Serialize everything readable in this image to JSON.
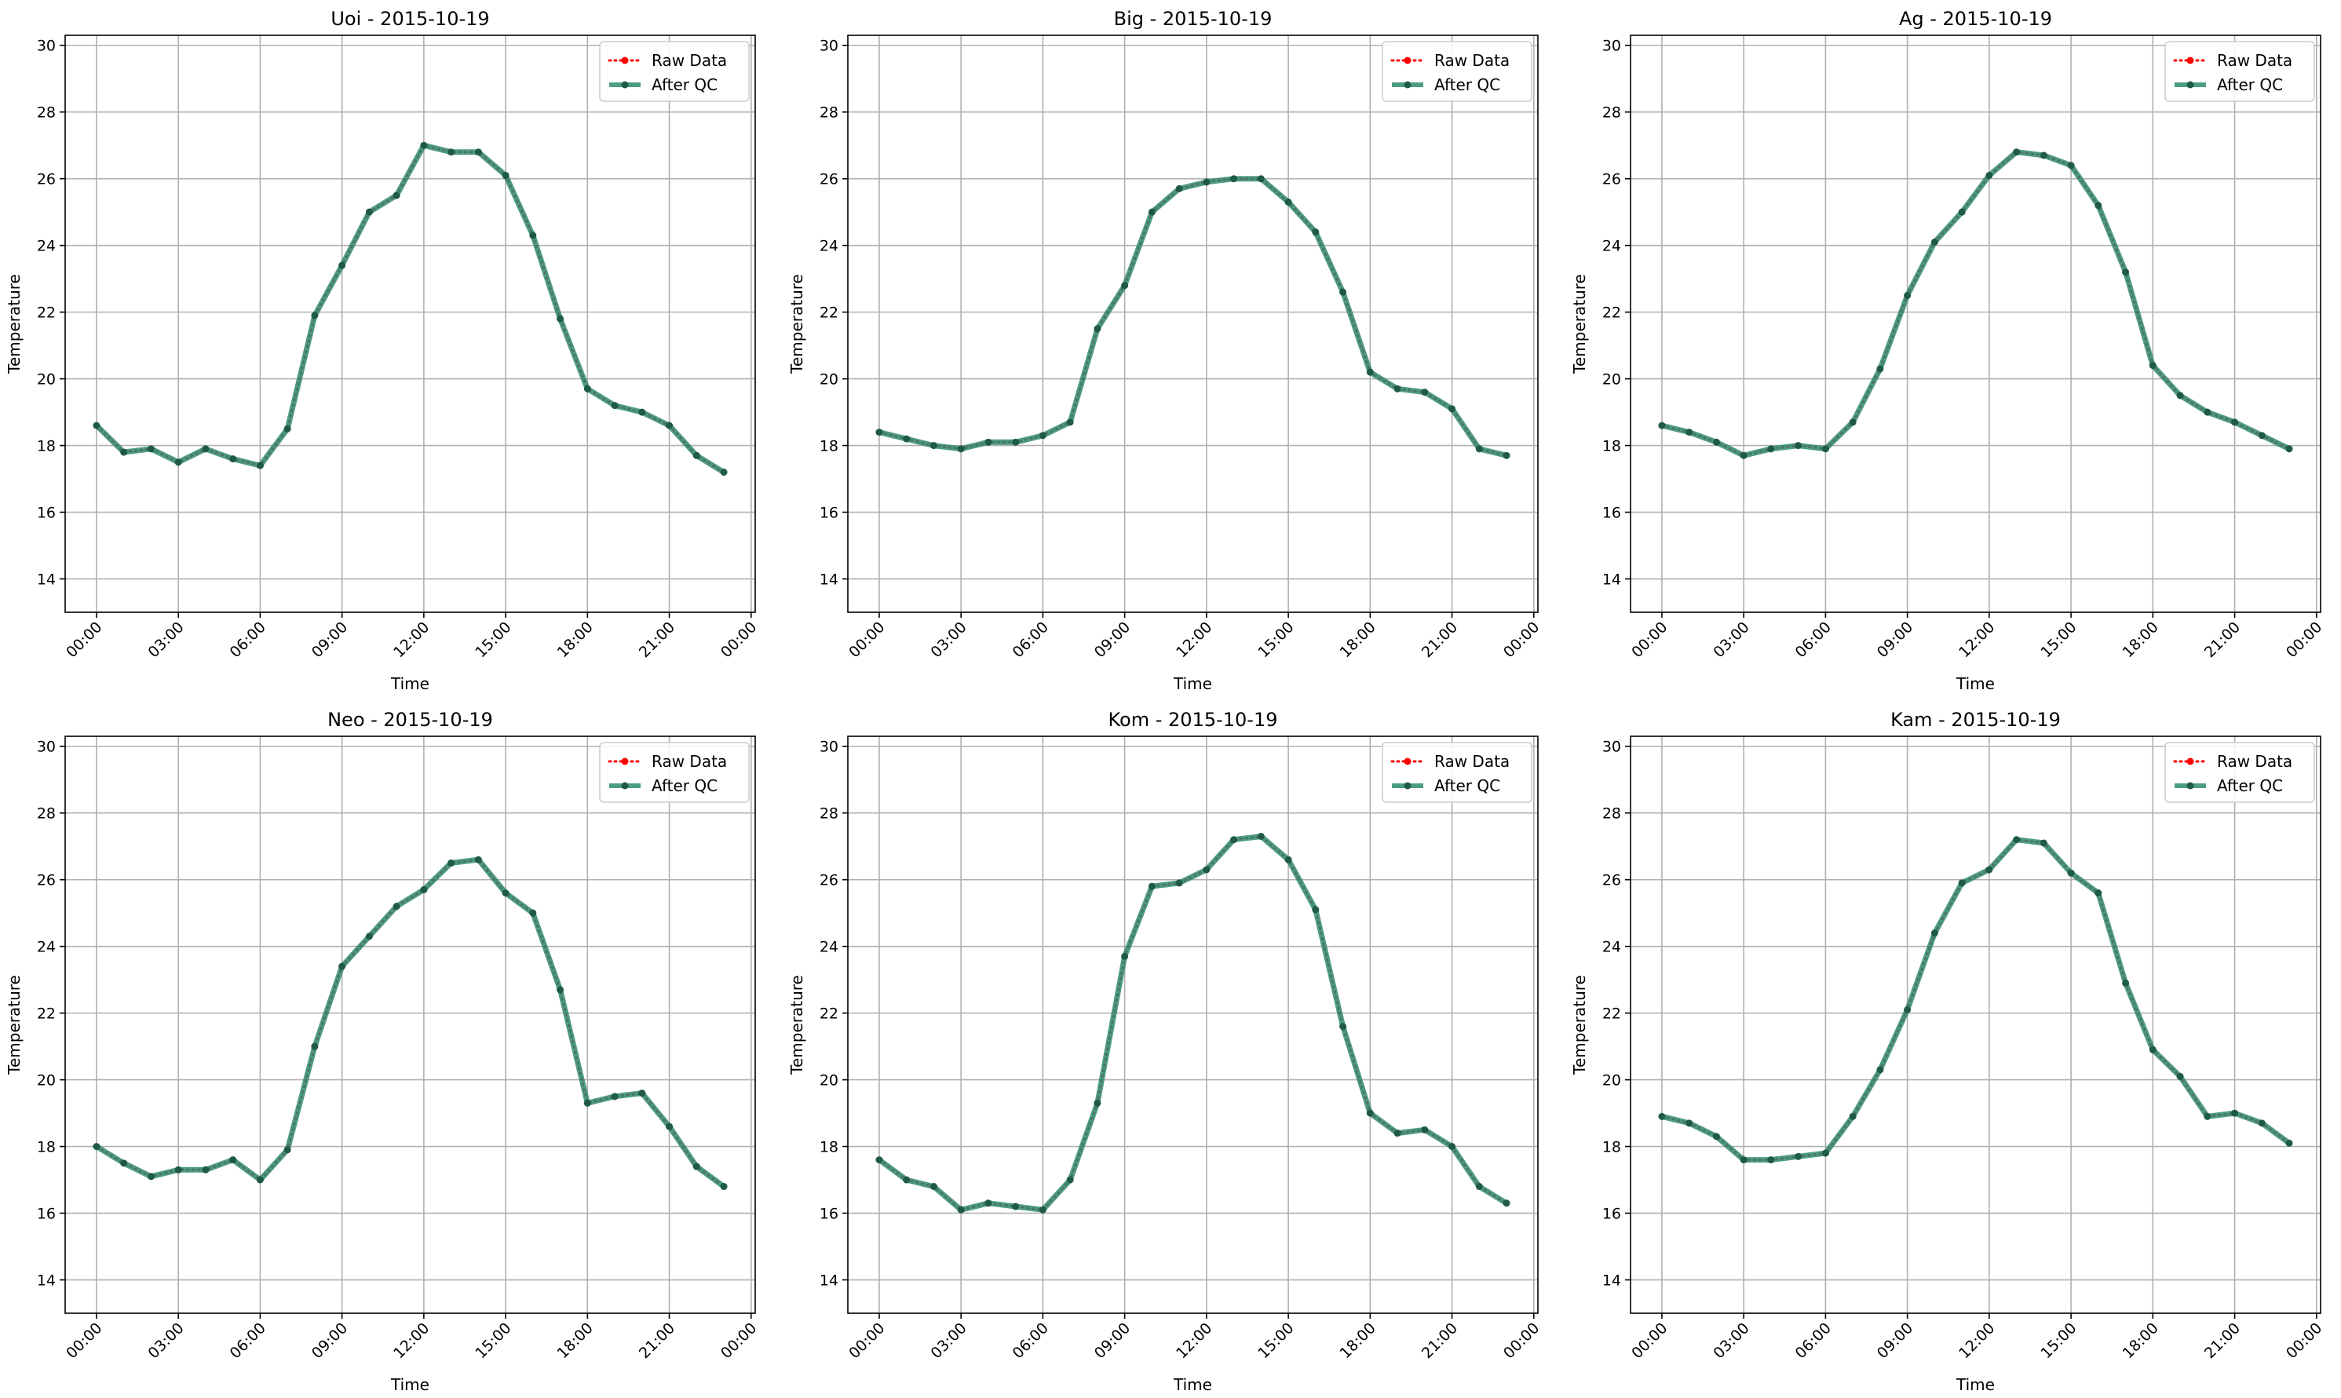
{
  "figure": {
    "legend_labels": [
      "Raw Data",
      "After QC"
    ],
    "colors": {
      "raw": "#ff0000",
      "qc": "#2e8b6e",
      "grid": "#b0b0b0"
    }
  },
  "chart_data": [
    {
      "type": "line",
      "title": "Uoi - 2015-10-19",
      "xlabel": "Time",
      "ylabel": "Temperature",
      "x_tick_labels": [
        "00:00",
        "03:00",
        "06:00",
        "09:00",
        "12:00",
        "15:00",
        "18:00",
        "21:00",
        "00:00"
      ],
      "x_tick_hours": [
        0,
        3,
        6,
        9,
        12,
        15,
        18,
        21,
        24
      ],
      "xlim_hours": [
        -1.15,
        24.15
      ],
      "y_ticks": [
        14,
        16,
        18,
        20,
        22,
        24,
        26,
        28,
        30
      ],
      "ylim": [
        13.0,
        30.3
      ],
      "grid": true,
      "legend_position": "top-right",
      "x_hours": [
        0,
        1,
        2,
        3,
        4,
        5,
        6,
        7,
        8,
        9,
        10,
        11,
        12,
        13,
        14,
        15,
        16,
        17,
        18,
        19,
        20,
        21,
        22,
        23
      ],
      "series": [
        {
          "name": "Raw Data",
          "values": [
            18.6,
            17.8,
            17.9,
            17.5,
            17.9,
            17.6,
            17.4,
            18.5,
            21.9,
            23.4,
            25.0,
            25.5,
            27.0,
            26.8,
            26.8,
            26.1,
            24.3,
            21.8,
            19.7,
            19.2,
            19.0,
            18.6,
            17.7,
            17.2
          ]
        },
        {
          "name": "After QC",
          "values": [
            18.6,
            17.8,
            17.9,
            17.5,
            17.9,
            17.6,
            17.4,
            18.5,
            21.9,
            23.4,
            25.0,
            25.5,
            27.0,
            26.8,
            26.8,
            26.1,
            24.3,
            21.8,
            19.7,
            19.2,
            19.0,
            18.6,
            17.7,
            17.2
          ]
        }
      ]
    },
    {
      "type": "line",
      "title": "Big - 2015-10-19",
      "xlabel": "Time",
      "ylabel": "Temperature",
      "x_tick_labels": [
        "00:00",
        "03:00",
        "06:00",
        "09:00",
        "12:00",
        "15:00",
        "18:00",
        "21:00",
        "00:00"
      ],
      "x_tick_hours": [
        0,
        3,
        6,
        9,
        12,
        15,
        18,
        21,
        24
      ],
      "xlim_hours": [
        -1.15,
        24.15
      ],
      "y_ticks": [
        14,
        16,
        18,
        20,
        22,
        24,
        26,
        28,
        30
      ],
      "ylim": [
        13.0,
        30.3
      ],
      "grid": true,
      "legend_position": "top-right",
      "x_hours": [
        0,
        1,
        2,
        3,
        4,
        5,
        6,
        7,
        8,
        9,
        10,
        11,
        12,
        13,
        14,
        15,
        16,
        17,
        18,
        19,
        20,
        21,
        22,
        23
      ],
      "series": [
        {
          "name": "Raw Data",
          "values": [
            18.4,
            18.2,
            18.0,
            17.9,
            18.1,
            18.1,
            18.3,
            18.7,
            21.5,
            22.8,
            25.0,
            25.7,
            25.9,
            26.0,
            26.0,
            25.3,
            24.4,
            22.6,
            20.2,
            19.7,
            19.6,
            19.1,
            17.9,
            17.7
          ]
        },
        {
          "name": "After QC",
          "values": [
            18.4,
            18.2,
            18.0,
            17.9,
            18.1,
            18.1,
            18.3,
            18.7,
            21.5,
            22.8,
            25.0,
            25.7,
            25.9,
            26.0,
            26.0,
            25.3,
            24.4,
            22.6,
            20.2,
            19.7,
            19.6,
            19.1,
            17.9,
            17.7
          ]
        }
      ]
    },
    {
      "type": "line",
      "title": "Ag - 2015-10-19",
      "xlabel": "Time",
      "ylabel": "Temperature",
      "x_tick_labels": [
        "00:00",
        "03:00",
        "06:00",
        "09:00",
        "12:00",
        "15:00",
        "18:00",
        "21:00",
        "00:00"
      ],
      "x_tick_hours": [
        0,
        3,
        6,
        9,
        12,
        15,
        18,
        21,
        24
      ],
      "xlim_hours": [
        -1.15,
        24.15
      ],
      "y_ticks": [
        14,
        16,
        18,
        20,
        22,
        24,
        26,
        28,
        30
      ],
      "ylim": [
        13.0,
        30.3
      ],
      "grid": true,
      "legend_position": "top-right",
      "x_hours": [
        0,
        1,
        2,
        3,
        4,
        5,
        6,
        7,
        8,
        9,
        10,
        11,
        12,
        13,
        14,
        15,
        16,
        17,
        18,
        19,
        20,
        21,
        22,
        23
      ],
      "series": [
        {
          "name": "Raw Data",
          "values": [
            18.6,
            18.4,
            18.1,
            17.7,
            17.9,
            18.0,
            17.9,
            18.7,
            20.3,
            22.5,
            24.1,
            25.0,
            26.1,
            26.8,
            26.7,
            26.4,
            25.2,
            23.2,
            20.4,
            19.5,
            19.0,
            18.7,
            18.3,
            17.9
          ]
        },
        {
          "name": "After QC",
          "values": [
            18.6,
            18.4,
            18.1,
            17.7,
            17.9,
            18.0,
            17.9,
            18.7,
            20.3,
            22.5,
            24.1,
            25.0,
            26.1,
            26.8,
            26.7,
            26.4,
            25.2,
            23.2,
            20.4,
            19.5,
            19.0,
            18.7,
            18.3,
            17.9
          ]
        }
      ]
    },
    {
      "type": "line",
      "title": "Neo - 2015-10-19",
      "xlabel": "Time",
      "ylabel": "Temperature",
      "x_tick_labels": [
        "00:00",
        "03:00",
        "06:00",
        "09:00",
        "12:00",
        "15:00",
        "18:00",
        "21:00",
        "00:00"
      ],
      "x_tick_hours": [
        0,
        3,
        6,
        9,
        12,
        15,
        18,
        21,
        24
      ],
      "xlim_hours": [
        -1.15,
        24.15
      ],
      "y_ticks": [
        14,
        16,
        18,
        20,
        22,
        24,
        26,
        28,
        30
      ],
      "ylim": [
        13.0,
        30.3
      ],
      "grid": true,
      "legend_position": "top-right",
      "x_hours": [
        0,
        1,
        2,
        3,
        4,
        5,
        6,
        7,
        8,
        9,
        10,
        11,
        12,
        13,
        14,
        15,
        16,
        17,
        18,
        19,
        20,
        21,
        22,
        23
      ],
      "series": [
        {
          "name": "Raw Data",
          "values": [
            18.0,
            17.5,
            17.1,
            17.3,
            17.3,
            17.6,
            17.0,
            17.9,
            21.0,
            23.4,
            24.3,
            25.2,
            25.7,
            26.5,
            26.6,
            25.6,
            25.0,
            22.7,
            19.3,
            19.5,
            19.6,
            18.6,
            17.4,
            16.8
          ]
        },
        {
          "name": "After QC",
          "values": [
            18.0,
            17.5,
            17.1,
            17.3,
            17.3,
            17.6,
            17.0,
            17.9,
            21.0,
            23.4,
            24.3,
            25.2,
            25.7,
            26.5,
            26.6,
            25.6,
            25.0,
            22.7,
            19.3,
            19.5,
            19.6,
            18.6,
            17.4,
            16.8
          ]
        }
      ]
    },
    {
      "type": "line",
      "title": "Kom - 2015-10-19",
      "xlabel": "Time",
      "ylabel": "Temperature",
      "x_tick_labels": [
        "00:00",
        "03:00",
        "06:00",
        "09:00",
        "12:00",
        "15:00",
        "18:00",
        "21:00",
        "00:00"
      ],
      "x_tick_hours": [
        0,
        3,
        6,
        9,
        12,
        15,
        18,
        21,
        24
      ],
      "xlim_hours": [
        -1.15,
        24.15
      ],
      "y_ticks": [
        14,
        16,
        18,
        20,
        22,
        24,
        26,
        28,
        30
      ],
      "ylim": [
        13.0,
        30.3
      ],
      "grid": true,
      "legend_position": "top-right",
      "x_hours": [
        0,
        1,
        2,
        3,
        4,
        5,
        6,
        7,
        8,
        9,
        10,
        11,
        12,
        13,
        14,
        15,
        16,
        17,
        18,
        19,
        20,
        21,
        22,
        23
      ],
      "series": [
        {
          "name": "Raw Data",
          "values": [
            17.6,
            17.0,
            16.8,
            16.1,
            16.3,
            16.2,
            16.1,
            17.0,
            19.3,
            23.7,
            25.8,
            25.9,
            26.3,
            27.2,
            27.3,
            26.6,
            25.1,
            21.6,
            19.0,
            18.4,
            18.5,
            18.0,
            16.8,
            16.3
          ]
        },
        {
          "name": "After QC",
          "values": [
            17.6,
            17.0,
            16.8,
            16.1,
            16.3,
            16.2,
            16.1,
            17.0,
            19.3,
            23.7,
            25.8,
            25.9,
            26.3,
            27.2,
            27.3,
            26.6,
            25.1,
            21.6,
            19.0,
            18.4,
            18.5,
            18.0,
            16.8,
            16.3
          ]
        }
      ]
    },
    {
      "type": "line",
      "title": "Kam - 2015-10-19",
      "xlabel": "Time",
      "ylabel": "Temperature",
      "x_tick_labels": [
        "00:00",
        "03:00",
        "06:00",
        "09:00",
        "12:00",
        "15:00",
        "18:00",
        "21:00",
        "00:00"
      ],
      "x_tick_hours": [
        0,
        3,
        6,
        9,
        12,
        15,
        18,
        21,
        24
      ],
      "xlim_hours": [
        -1.15,
        24.15
      ],
      "y_ticks": [
        14,
        16,
        18,
        20,
        22,
        24,
        26,
        28,
        30
      ],
      "ylim": [
        13.0,
        30.3
      ],
      "grid": true,
      "legend_position": "top-right",
      "x_hours": [
        0,
        1,
        2,
        3,
        4,
        5,
        6,
        7,
        8,
        9,
        10,
        11,
        12,
        13,
        14,
        15,
        16,
        17,
        18,
        19,
        20,
        21,
        22,
        23
      ],
      "series": [
        {
          "name": "Raw Data",
          "values": [
            18.9,
            18.7,
            18.3,
            17.6,
            17.6,
            17.7,
            17.8,
            18.9,
            20.3,
            22.1,
            24.4,
            25.9,
            26.3,
            27.2,
            27.1,
            26.2,
            25.6,
            22.9,
            20.9,
            20.1,
            18.9,
            19.0,
            18.7,
            18.1
          ]
        },
        {
          "name": "After QC",
          "values": [
            18.9,
            18.7,
            18.3,
            17.6,
            17.6,
            17.7,
            17.8,
            18.9,
            20.3,
            22.1,
            24.4,
            25.9,
            26.3,
            27.2,
            27.1,
            26.2,
            25.6,
            22.9,
            20.9,
            20.1,
            18.9,
            19.0,
            18.7,
            18.1
          ]
        }
      ]
    }
  ]
}
